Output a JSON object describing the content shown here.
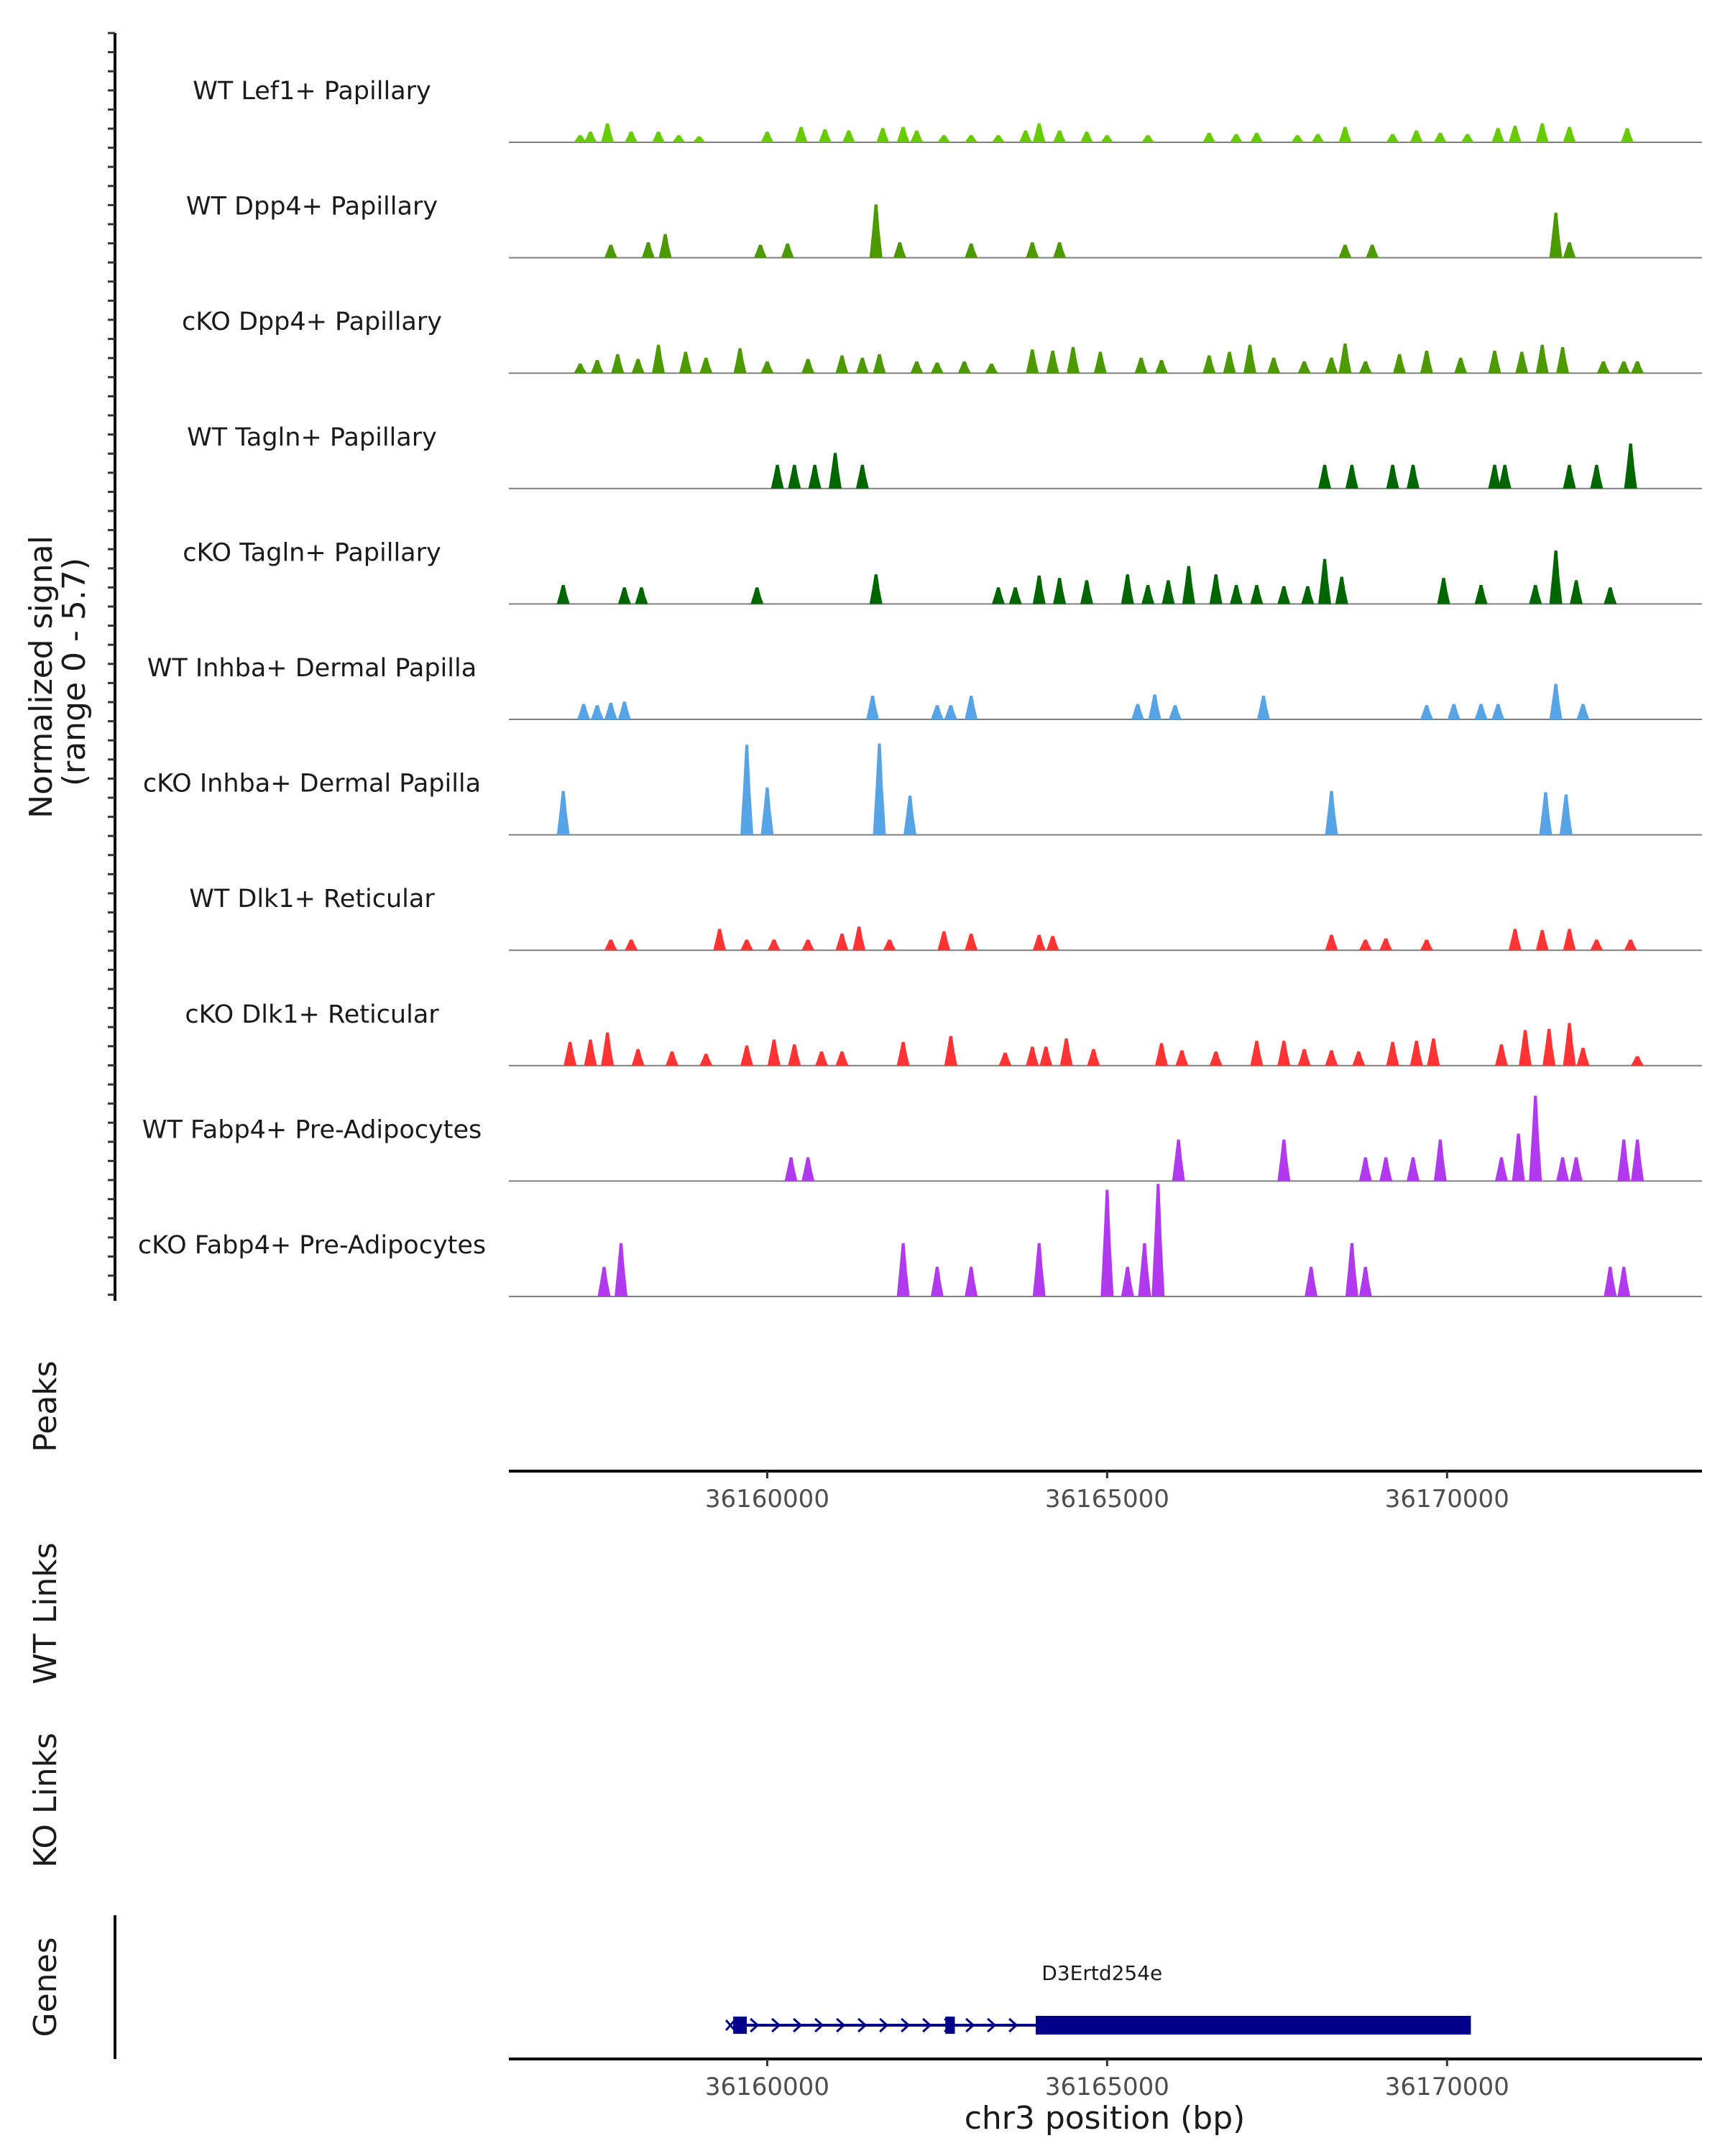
{
  "chart_data": {
    "type": "area",
    "title": "",
    "ylabel": "Normalized signal\n(range 0 - 5.7)",
    "ylabel_lines": [
      "Normalized signal",
      "(range 0 - 5.7)"
    ],
    "ylim": [
      0,
      5.7
    ],
    "xlabel": "chr3 position (bp)",
    "xlim": [
      36156200,
      36173750
    ],
    "xticks": [
      36160000,
      36165000,
      36170000
    ],
    "xtick_labels": [
      "36160000",
      "36165000",
      "36170000"
    ],
    "series": [
      {
        "name": "WT Lef1+ Papillary",
        "color": "#66CC00",
        "peaks": [
          [
            36157250,
            0.6
          ],
          [
            36157400,
            0.9
          ],
          [
            36157650,
            1.6
          ],
          [
            36158000,
            0.9
          ],
          [
            36158400,
            0.9
          ],
          [
            36158700,
            0.6
          ],
          [
            36159000,
            0.5
          ],
          [
            36160000,
            0.9
          ],
          [
            36160500,
            1.3
          ],
          [
            36160850,
            1.1
          ],
          [
            36161200,
            1.0
          ],
          [
            36161700,
            1.2
          ],
          [
            36162000,
            1.3
          ],
          [
            36162200,
            1.0
          ],
          [
            36162600,
            0.6
          ],
          [
            36163000,
            0.6
          ],
          [
            36163400,
            0.6
          ],
          [
            36163800,
            1.0
          ],
          [
            36164000,
            1.6
          ],
          [
            36164300,
            1.0
          ],
          [
            36164700,
            0.9
          ],
          [
            36165000,
            0.6
          ],
          [
            36165600,
            0.6
          ],
          [
            36166500,
            0.8
          ],
          [
            36166900,
            0.7
          ],
          [
            36167200,
            0.8
          ],
          [
            36167800,
            0.6
          ],
          [
            36168100,
            0.7
          ],
          [
            36168500,
            1.3
          ],
          [
            36169200,
            0.7
          ],
          [
            36169550,
            1.0
          ],
          [
            36169900,
            0.8
          ],
          [
            36170300,
            0.7
          ],
          [
            36170750,
            1.2
          ],
          [
            36171000,
            1.4
          ],
          [
            36171400,
            1.6
          ],
          [
            36171800,
            1.3
          ],
          [
            36172650,
            1.2
          ]
        ]
      },
      {
        "name": "WT Dpp4+ Papillary",
        "color": "#4C9900",
        "peaks": [
          [
            36157700,
            1.1
          ],
          [
            36158250,
            1.3
          ],
          [
            36158500,
            2.0
          ],
          [
            36159900,
            1.1
          ],
          [
            36160300,
            1.2
          ],
          [
            36161600,
            4.5
          ],
          [
            36161950,
            1.3
          ],
          [
            36163000,
            1.2
          ],
          [
            36163900,
            1.3
          ],
          [
            36164300,
            1.3
          ],
          [
            36168500,
            1.1
          ],
          [
            36168900,
            1.1
          ],
          [
            36171600,
            3.8
          ],
          [
            36171800,
            1.3
          ]
        ]
      },
      {
        "name": "cKO Dpp4+ Papillary",
        "color": "#4C9900",
        "peaks": [
          [
            36157250,
            0.8
          ],
          [
            36157500,
            1.1
          ],
          [
            36157800,
            1.6
          ],
          [
            36158100,
            1.2
          ],
          [
            36158400,
            2.4
          ],
          [
            36158800,
            1.8
          ],
          [
            36159100,
            1.3
          ],
          [
            36159600,
            2.1
          ],
          [
            36160000,
            1.0
          ],
          [
            36160600,
            1.2
          ],
          [
            36161100,
            1.5
          ],
          [
            36161400,
            1.3
          ],
          [
            36161650,
            1.6
          ],
          [
            36162200,
            1.0
          ],
          [
            36162500,
            0.9
          ],
          [
            36162900,
            1.0
          ],
          [
            36163300,
            0.8
          ],
          [
            36163900,
            2.0
          ],
          [
            36164200,
            1.9
          ],
          [
            36164500,
            2.2
          ],
          [
            36164900,
            1.8
          ],
          [
            36165500,
            1.3
          ],
          [
            36165800,
            1.1
          ],
          [
            36166500,
            1.5
          ],
          [
            36166800,
            1.8
          ],
          [
            36167100,
            2.4
          ],
          [
            36167450,
            1.3
          ],
          [
            36167900,
            1.0
          ],
          [
            36168300,
            1.3
          ],
          [
            36168500,
            2.5
          ],
          [
            36168800,
            1.0
          ],
          [
            36169300,
            1.6
          ],
          [
            36169700,
            1.9
          ],
          [
            36170200,
            1.3
          ],
          [
            36170700,
            1.9
          ],
          [
            36171100,
            1.8
          ],
          [
            36171400,
            2.4
          ],
          [
            36171700,
            2.2
          ],
          [
            36172300,
            1.0
          ],
          [
            36172600,
            1.0
          ],
          [
            36172800,
            1.0
          ]
        ]
      },
      {
        "name": "WT Tagln+ Papillary",
        "color": "#006600",
        "peaks": [
          [
            36160150,
            2.0
          ],
          [
            36160400,
            2.0
          ],
          [
            36160700,
            2.0
          ],
          [
            36161000,
            3.0
          ],
          [
            36161400,
            2.0
          ],
          [
            36168200,
            2.0
          ],
          [
            36168600,
            2.0
          ],
          [
            36169200,
            2.0
          ],
          [
            36169500,
            2.0
          ],
          [
            36170700,
            2.0
          ],
          [
            36170850,
            2.0
          ],
          [
            36171800,
            2.0
          ],
          [
            36172200,
            2.0
          ],
          [
            36172700,
            3.8
          ]
        ]
      },
      {
        "name": "cKO Tagln+ Papillary",
        "color": "#006600",
        "peaks": [
          [
            36157000,
            1.6
          ],
          [
            36157900,
            1.4
          ],
          [
            36158150,
            1.4
          ],
          [
            36159850,
            1.4
          ],
          [
            36161600,
            2.5
          ],
          [
            36163400,
            1.4
          ],
          [
            36163650,
            1.4
          ],
          [
            36164000,
            2.4
          ],
          [
            36164300,
            2.2
          ],
          [
            36164700,
            2.0
          ],
          [
            36165300,
            2.5
          ],
          [
            36165600,
            1.6
          ],
          [
            36165900,
            2.0
          ],
          [
            36166200,
            3.2
          ],
          [
            36166600,
            2.5
          ],
          [
            36166900,
            1.6
          ],
          [
            36167200,
            1.6
          ],
          [
            36167600,
            1.5
          ],
          [
            36167950,
            1.5
          ],
          [
            36168200,
            3.8
          ],
          [
            36168450,
            2.3
          ],
          [
            36169950,
            2.2
          ],
          [
            36170500,
            1.6
          ],
          [
            36171300,
            1.6
          ],
          [
            36171600,
            4.5
          ],
          [
            36171900,
            2.0
          ],
          [
            36172400,
            1.4
          ]
        ]
      },
      {
        "name": "WT Inhba+ Dermal Papilla",
        "color": "#56A3E6",
        "peaks": [
          [
            36157300,
            1.3
          ],
          [
            36157500,
            1.2
          ],
          [
            36157700,
            1.4
          ],
          [
            36157900,
            1.5
          ],
          [
            36161550,
            2.0
          ],
          [
            36162500,
            1.2
          ],
          [
            36162700,
            1.2
          ],
          [
            36163000,
            2.0
          ],
          [
            36165450,
            1.3
          ],
          [
            36165700,
            2.1
          ],
          [
            36166000,
            1.2
          ],
          [
            36167300,
            2.0
          ],
          [
            36169700,
            1.2
          ],
          [
            36170100,
            1.3
          ],
          [
            36170500,
            1.3
          ],
          [
            36170750,
            1.3
          ],
          [
            36171600,
            3.0
          ],
          [
            36172000,
            1.3
          ]
        ]
      },
      {
        "name": "cKO Inhba+ Dermal Papilla",
        "color": "#56A3E6",
        "peaks": [
          [
            36157000,
            3.7
          ],
          [
            36159700,
            7.6
          ],
          [
            36160000,
            4.0
          ],
          [
            36161650,
            7.7
          ],
          [
            36162100,
            3.3
          ],
          [
            36168300,
            3.7
          ],
          [
            36171450,
            3.6
          ],
          [
            36171750,
            3.4
          ]
        ]
      },
      {
        "name": "WT Dlk1+ Reticular",
        "color": "#FF3333",
        "peaks": [
          [
            36157700,
            0.9
          ],
          [
            36158000,
            0.9
          ],
          [
            36159300,
            1.8
          ],
          [
            36159700,
            0.9
          ],
          [
            36160100,
            0.9
          ],
          [
            36160600,
            0.9
          ],
          [
            36161100,
            1.4
          ],
          [
            36161350,
            2.0
          ],
          [
            36161800,
            0.9
          ],
          [
            36162600,
            1.6
          ],
          [
            36163000,
            1.4
          ],
          [
            36164000,
            1.3
          ],
          [
            36164200,
            1.2
          ],
          [
            36168300,
            1.3
          ],
          [
            36168800,
            0.9
          ],
          [
            36169100,
            1.0
          ],
          [
            36169700,
            0.9
          ],
          [
            36171000,
            1.8
          ],
          [
            36171400,
            1.7
          ],
          [
            36171800,
            1.8
          ],
          [
            36172200,
            0.9
          ],
          [
            36172700,
            0.9
          ]
        ]
      },
      {
        "name": "cKO Dlk1+ Reticular",
        "color": "#FF3333",
        "peaks": [
          [
            36157100,
            2.0
          ],
          [
            36157400,
            2.2
          ],
          [
            36157650,
            2.8
          ],
          [
            36158100,
            1.4
          ],
          [
            36158600,
            1.2
          ],
          [
            36159100,
            1.0
          ],
          [
            36159700,
            1.7
          ],
          [
            36160100,
            2.2
          ],
          [
            36160400,
            1.8
          ],
          [
            36160800,
            1.2
          ],
          [
            36161100,
            1.2
          ],
          [
            36162000,
            2.0
          ],
          [
            36162700,
            2.5
          ],
          [
            36163500,
            1.1
          ],
          [
            36163900,
            1.6
          ],
          [
            36164100,
            1.6
          ],
          [
            36164400,
            2.3
          ],
          [
            36164800,
            1.4
          ],
          [
            36165800,
            1.9
          ],
          [
            36166100,
            1.3
          ],
          [
            36166600,
            1.2
          ],
          [
            36167200,
            2.1
          ],
          [
            36167600,
            2.1
          ],
          [
            36167900,
            1.4
          ],
          [
            36168300,
            1.3
          ],
          [
            36168700,
            1.2
          ],
          [
            36169200,
            2.0
          ],
          [
            36169550,
            2.1
          ],
          [
            36169800,
            2.3
          ],
          [
            36170800,
            1.8
          ],
          [
            36171150,
            3.0
          ],
          [
            36171500,
            3.1
          ],
          [
            36171800,
            3.6
          ],
          [
            36172000,
            1.5
          ],
          [
            36172800,
            0.8
          ]
        ]
      },
      {
        "name": "WT Fabp4+ Pre-Adipocytes",
        "color": "#B23AEE",
        "peaks": [
          [
            36160350,
            2.0
          ],
          [
            36160600,
            2.0
          ],
          [
            36166050,
            3.5
          ],
          [
            36167600,
            3.5
          ],
          [
            36168800,
            2.0
          ],
          [
            36169100,
            2.0
          ],
          [
            36169500,
            2.0
          ],
          [
            36169900,
            3.5
          ],
          [
            36170800,
            2.0
          ],
          [
            36171050,
            4.0
          ],
          [
            36171300,
            7.2
          ],
          [
            36171700,
            2.0
          ],
          [
            36171900,
            2.0
          ],
          [
            36172600,
            3.5
          ],
          [
            36172800,
            3.5
          ]
        ]
      },
      {
        "name": "cKO Fabp4+ Pre-Adipocytes",
        "color": "#B23AEE",
        "peaks": [
          [
            36157600,
            2.5
          ],
          [
            36157850,
            4.5
          ],
          [
            36162000,
            4.5
          ],
          [
            36162500,
            2.5
          ],
          [
            36163000,
            2.5
          ],
          [
            36164000,
            4.5
          ],
          [
            36165000,
            9.0
          ],
          [
            36165300,
            2.5
          ],
          [
            36165550,
            4.5
          ],
          [
            36165750,
            9.5
          ],
          [
            36168000,
            2.5
          ],
          [
            36168600,
            4.5
          ],
          [
            36168800,
            2.5
          ],
          [
            36172400,
            2.5
          ],
          [
            36172600,
            2.5
          ]
        ]
      }
    ],
    "panels": {
      "peaks": "Peaks",
      "wt_links": "WT Links",
      "ko_links": "KO Links",
      "genes": "Genes"
    },
    "gene": {
      "name": "D3Ertd254e",
      "start": 36159500,
      "end": 36170350,
      "thick_start": 36163950,
      "exons": [
        [
          36159500,
          36159700
        ],
        [
          36162620,
          36162760
        ],
        [
          36163950,
          36170350
        ]
      ],
      "strand": "+",
      "color": "#00008B"
    }
  }
}
